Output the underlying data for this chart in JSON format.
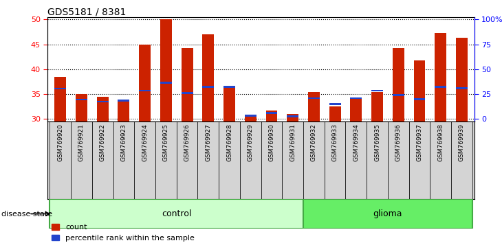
{
  "title": "GDS5181 / 8381",
  "samples": [
    "GSM769920",
    "GSM769921",
    "GSM769922",
    "GSM769923",
    "GSM769924",
    "GSM769925",
    "GSM769926",
    "GSM769927",
    "GSM769928",
    "GSM769929",
    "GSM769930",
    "GSM769931",
    "GSM769932",
    "GSM769933",
    "GSM769934",
    "GSM769935",
    "GSM769936",
    "GSM769937",
    "GSM769938",
    "GSM769939"
  ],
  "count_values": [
    38.5,
    35.0,
    34.5,
    33.8,
    45.0,
    50.0,
    44.3,
    47.0,
    36.5,
    30.7,
    31.7,
    31.0,
    35.5,
    32.5,
    34.0,
    35.5,
    44.3,
    41.8,
    47.3,
    46.3
  ],
  "percentile_values": [
    36.1,
    33.9,
    33.5,
    33.7,
    35.7,
    37.3,
    35.2,
    36.5,
    36.5,
    30.7,
    31.2,
    30.5,
    34.2,
    33.0,
    34.2,
    35.7,
    34.8,
    34.0,
    36.5,
    36.2
  ],
  "bar_color": "#cc2200",
  "marker_color": "#2244cc",
  "ymin": 29.5,
  "ymax": 50.5,
  "yticks": [
    30,
    35,
    40,
    45,
    50
  ],
  "right_tick_positions": [
    30,
    35,
    40,
    45,
    50
  ],
  "right_tick_labels": [
    "0",
    "25",
    "50",
    "75",
    "100%"
  ],
  "control_count": 12,
  "glioma_count": 8,
  "control_color": "#ccffcc",
  "glioma_color": "#66ee66",
  "group_border_color": "#44aa44",
  "group_labels": [
    "control",
    "glioma"
  ],
  "legend_count_label": "count",
  "legend_percentile_label": "percentile rank within the sample",
  "disease_state_label": "disease state",
  "bar_width": 0.55,
  "tick_bg_color": "#d4d4d4",
  "plot_bg_color": "#ffffff"
}
